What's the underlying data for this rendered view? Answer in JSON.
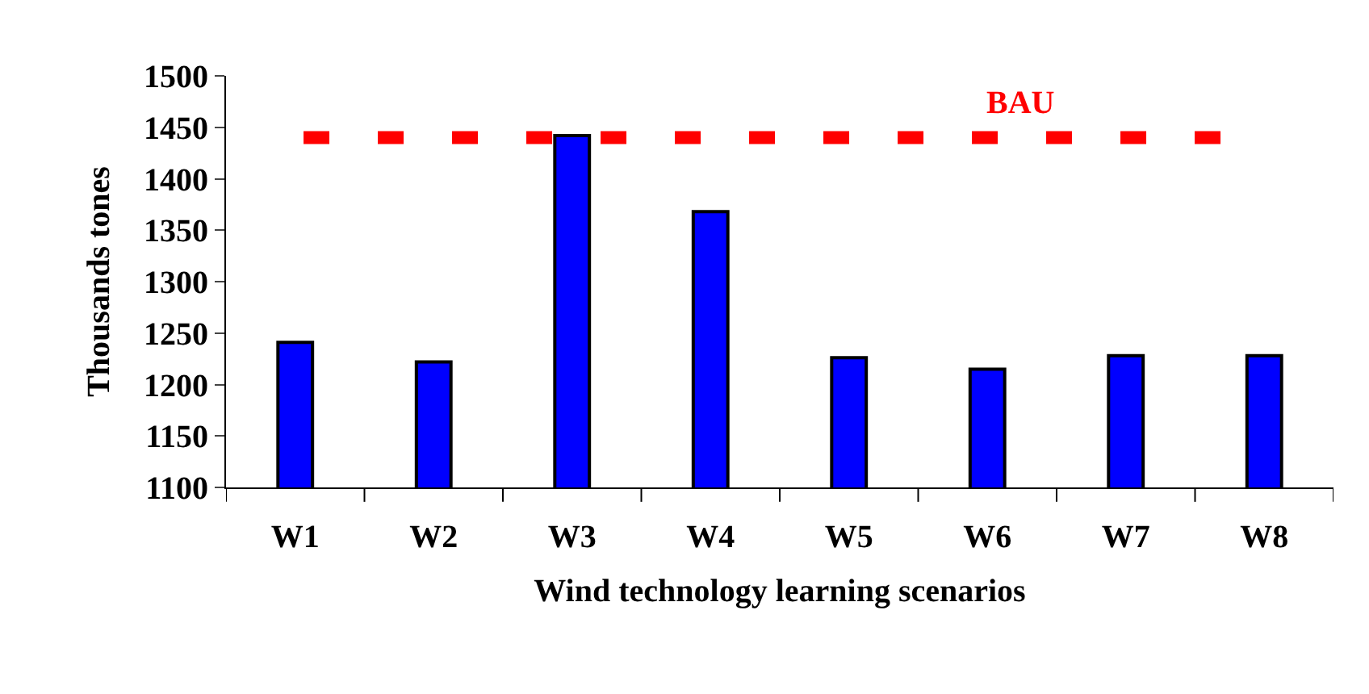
{
  "chart_data": {
    "type": "bar",
    "xlabel": "Wind technology learning scenarios",
    "ylabel": "Thousands tones",
    "categories": [
      "W1",
      "W2",
      "W3",
      "W4",
      "W5",
      "W6",
      "W7",
      "W8"
    ],
    "values": [
      1241,
      1222,
      1442,
      1368,
      1226,
      1215,
      1228,
      1228
    ],
    "color": "#0000ff",
    "ylim": [
      1100,
      1500
    ],
    "yticks": [
      1100,
      1150,
      1200,
      1250,
      1300,
      1350,
      1400,
      1450,
      1500
    ],
    "ref_lines": [
      {
        "axis": "y",
        "value": 1440,
        "label": "BAU",
        "color": "#ff0000",
        "line_style": "dashed"
      }
    ]
  }
}
